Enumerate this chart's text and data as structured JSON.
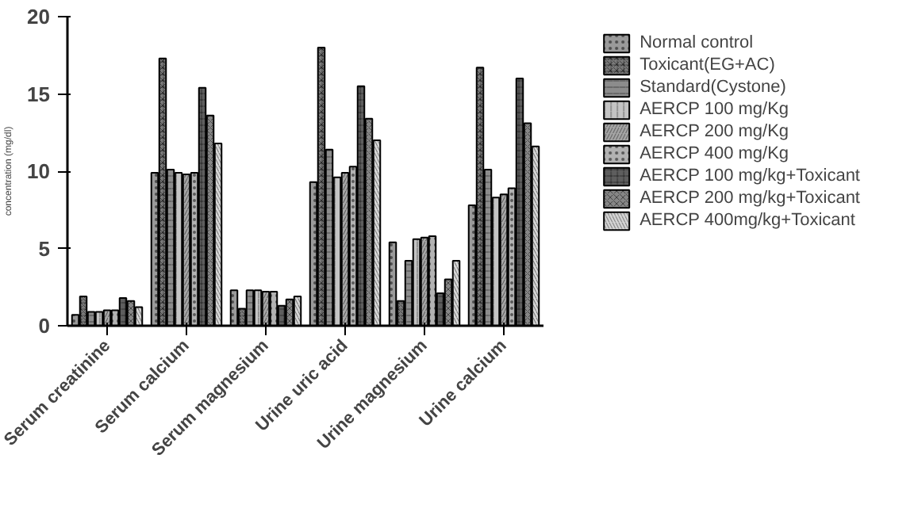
{
  "chart_data": {
    "type": "bar",
    "ylabel": "concentration (mg/dl)",
    "categories": [
      "Serum creatinine",
      "Serum calcium",
      "Serum magnesium",
      "Urine uric acid",
      "Urine magnesium",
      "Urine calcium"
    ],
    "ylim": [
      0,
      20
    ],
    "yticks": [
      0,
      5,
      10,
      15,
      20
    ],
    "grid": false,
    "legend": "right",
    "series": [
      {
        "name": "Normal control",
        "color": "#9a9a9a",
        "values": [
          0.7,
          9.9,
          2.3,
          9.3,
          5.4,
          7.8
        ]
      },
      {
        "name": "Toxicant(EG+AC)",
        "color": "#7a7a7a",
        "values": [
          1.9,
          17.3,
          1.1,
          18.0,
          1.6,
          16.7
        ]
      },
      {
        "name": "Standard(Cystone)",
        "color": "#8c8c8c",
        "values": [
          0.9,
          10.1,
          2.3,
          11.4,
          4.2,
          10.1
        ]
      },
      {
        "name": "AERCP 100 mg/Kg",
        "color": "#c4c4c4",
        "values": [
          0.9,
          9.9,
          2.3,
          9.6,
          5.6,
          8.3
        ]
      },
      {
        "name": "AERCP 200 mg/Kg",
        "color": "#a6a6a6",
        "values": [
          1.0,
          9.8,
          2.2,
          9.9,
          5.7,
          8.5
        ]
      },
      {
        "name": "AERCP 400 mg/Kg",
        "color": "#b2b2b2",
        "values": [
          1.0,
          9.9,
          2.2,
          10.3,
          5.8,
          8.9
        ]
      },
      {
        "name": "AERCP 100 mg/kg+Toxicant",
        "color": "#5e5e5e",
        "values": [
          1.8,
          15.4,
          1.3,
          15.5,
          2.1,
          16.0
        ]
      },
      {
        "name": "AERCP 200 mg/kg+Toxicant",
        "color": "#868686",
        "values": [
          1.6,
          13.6,
          1.7,
          13.4,
          3.0,
          13.1
        ]
      },
      {
        "name": "AERCP 400mg/kg+Toxicant",
        "color": "#d6d6d6",
        "values": [
          1.2,
          11.8,
          1.9,
          12.0,
          4.2,
          11.6
        ]
      }
    ]
  }
}
